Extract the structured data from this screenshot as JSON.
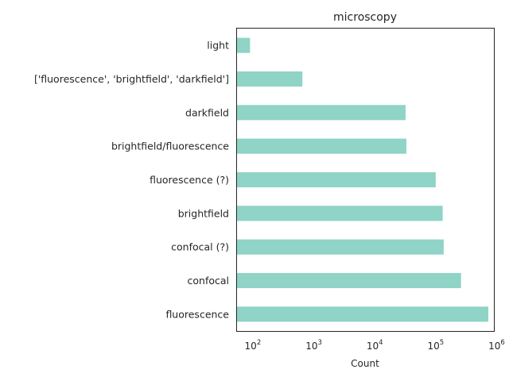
{
  "chart_data": {
    "type": "bar",
    "orientation": "horizontal",
    "title": "microscopy",
    "xlabel": "Count",
    "ylabel": "",
    "x_scale": "log",
    "xlim": [
      55,
      900000
    ],
    "x_ticks": [
      {
        "value": 100,
        "base": "10",
        "exp": "2"
      },
      {
        "value": 1000,
        "base": "10",
        "exp": "3"
      },
      {
        "value": 10000,
        "base": "10",
        "exp": "4"
      },
      {
        "value": 100000,
        "base": "10",
        "exp": "5"
      },
      {
        "value": 1000000,
        "base": "10",
        "exp": "6"
      }
    ],
    "categories": [
      "light",
      "['fluorescence', 'brightfield', 'darkfield']",
      "darkfield",
      "brightfield/fluorescence",
      "fluorescence (?)",
      "brightfield",
      "confocal (?)",
      "confocal",
      "fluorescence"
    ],
    "values": [
      90,
      650,
      32000,
      33000,
      100000,
      130000,
      135000,
      260000,
      730000
    ],
    "grid": false,
    "bar_color": "#8fd4c6"
  }
}
